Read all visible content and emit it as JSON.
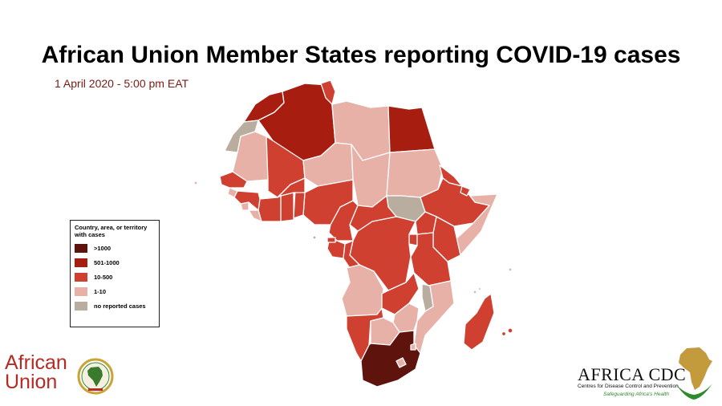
{
  "title": "African Union Member States reporting COVID-19 cases",
  "subtitle": "1 April 2020 - 5:00 pm EAT",
  "legend": {
    "title": "Country, area, or territory with cases",
    "items": [
      {
        "label": ">1000",
        "color": "#5e130d"
      },
      {
        "label": "501-1000",
        "color": "#a71d10"
      },
      {
        "label": "10-500",
        "color": "#cf4030"
      },
      {
        "label": "1-10",
        "color": "#e7b1a8"
      },
      {
        "label": "no reported cases",
        "color": "#b8ad9e"
      }
    ]
  },
  "map_colors": {
    "border": "#ffffff",
    "gt1000": "#5e130d",
    "c501_1000": "#a71d10",
    "c10_500": "#cf4030",
    "c1_10": "#e7b1a8",
    "none": "#b8ad9e"
  },
  "logos": {
    "african_union_line1": "African",
    "african_union_line2": "Union",
    "africa_cdc_name": "AFRICA CDC",
    "africa_cdc_subtitle": "Centres for Disease Control and Prevention",
    "africa_cdc_tagline": "Safeguarding Africa's Health"
  }
}
